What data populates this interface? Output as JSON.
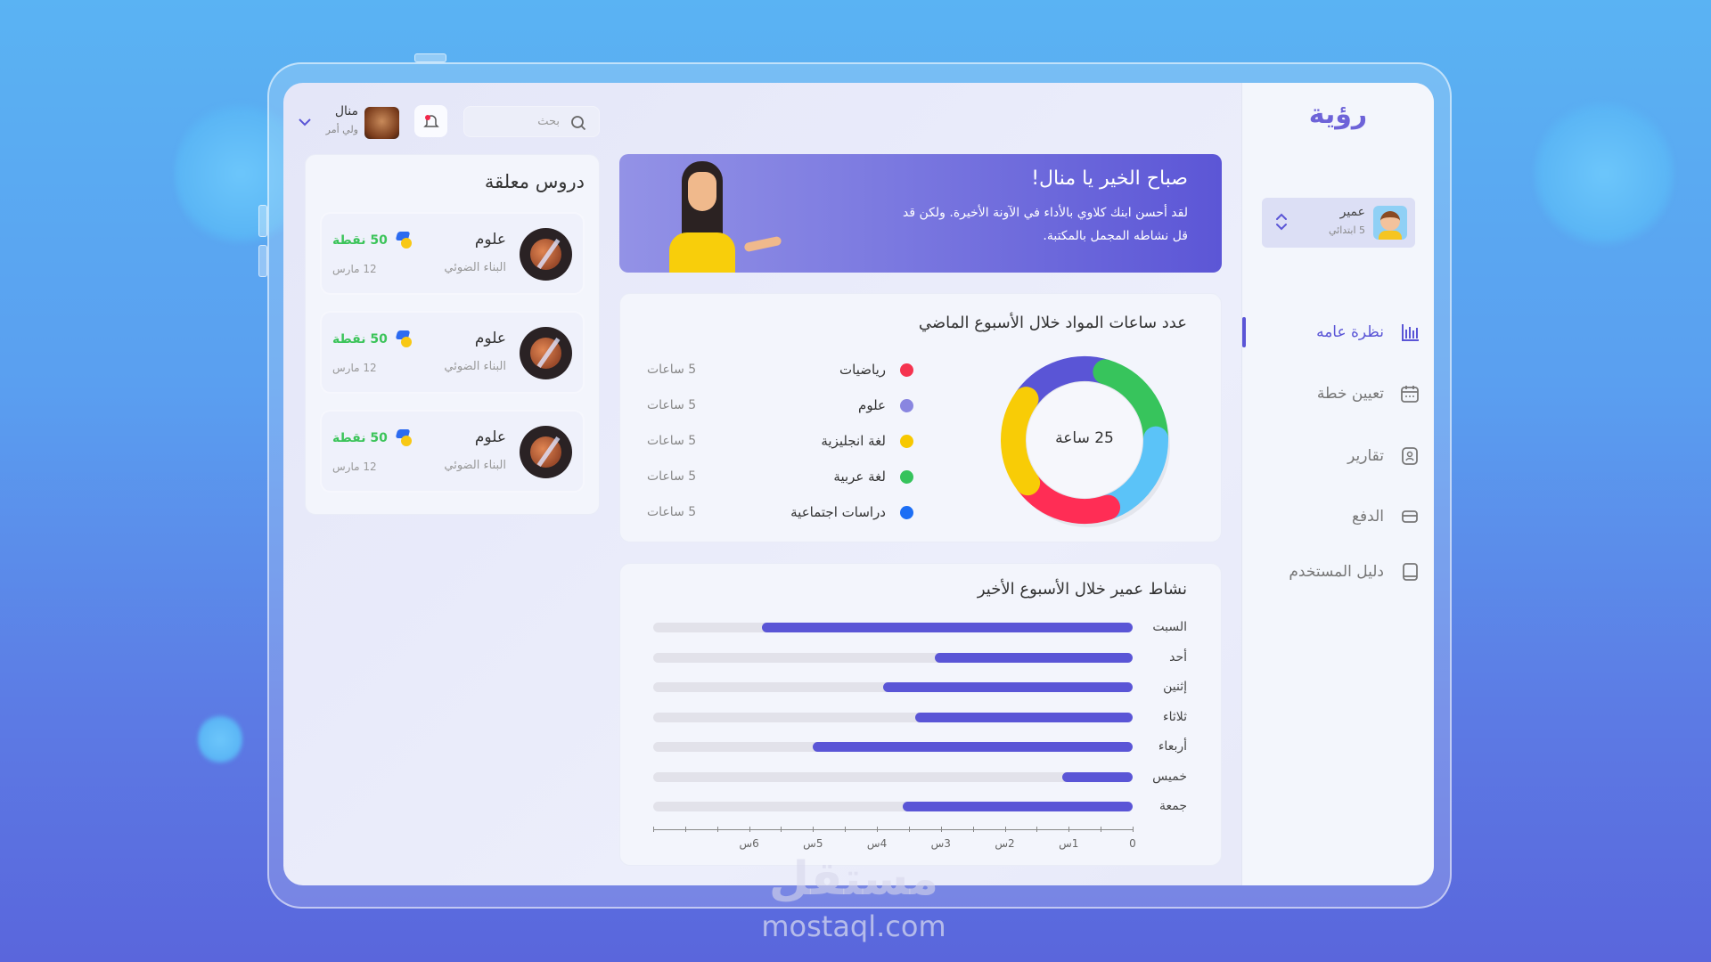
{
  "app": {
    "logo": "رؤية"
  },
  "header": {
    "search_placeholder": "بحث",
    "user_name": "منال",
    "user_role": "ولي أمر"
  },
  "student": {
    "name": "عمير",
    "grade": "5 ابتدائي"
  },
  "sidebar": {
    "items": [
      {
        "label": "نظرة عامه",
        "icon": "bar-chart-icon",
        "active": true
      },
      {
        "label": "تعيين خطة",
        "icon": "calendar-icon",
        "active": false
      },
      {
        "label": "تقارير",
        "icon": "report-icon",
        "active": false
      },
      {
        "label": "الدفع",
        "icon": "credit-card-icon",
        "active": false
      },
      {
        "label": "دليل المستخدم",
        "icon": "book-icon",
        "active": false
      }
    ]
  },
  "banner": {
    "title": "صباح الخير يا منال!",
    "line1": "لقد أحسن ابنك كلاوي بالأداء في الآونة الأخيرة. ولكن قد",
    "line2": "قل نشاطه المجمل بالمكتبة."
  },
  "pending": {
    "title": "دروس معلقة",
    "lessons": [
      {
        "subject": "علوم",
        "topic": "البناء الضوئي",
        "points": "50 نقطة",
        "date": "12 مارس"
      },
      {
        "subject": "علوم",
        "topic": "البناء الضوئي",
        "points": "50 نقطة",
        "date": "12 مارس"
      },
      {
        "subject": "علوم",
        "topic": "البناء الضوئي",
        "points": "50 نقطة",
        "date": "12 مارس"
      }
    ]
  },
  "colors": {
    "accent": "#5a55d6",
    "points": "#3cc45a"
  },
  "chart_data": [
    {
      "type": "pie",
      "title": "عدد ساعات المواد خلال الأسبوع الماضي",
      "center_label": "25 ساعة",
      "legend": [
        {
          "name": "رياضيات",
          "value": 5,
          "label": "5 ساعات",
          "dot": "#f5334f",
          "color": "#ff2d55"
        },
        {
          "name": "علوم",
          "value": 5,
          "label": "5 ساعات",
          "dot": "#8986e0",
          "color": "#5a55d6"
        },
        {
          "name": "لغة انجليزية",
          "value": 5,
          "label": "5 ساعات",
          "dot": "#f7c800",
          "color": "#f8cc06"
        },
        {
          "name": "لغة عربية",
          "value": 5,
          "label": "5 ساعات",
          "dot": "#36c35c",
          "color": "#37c45c"
        },
        {
          "name": "دراسات اجتماعية",
          "value": 5,
          "label": "5 ساعات",
          "dot": "#1c6ef5",
          "color": "#5bc3f8"
        }
      ],
      "ring_order": [
        "علوم",
        "لغة عربية",
        "دراسات اجتماعية",
        "رياضيات",
        "لغة انجليزية"
      ]
    },
    {
      "type": "bar",
      "title": "نشاط عمير خلال الأسبوع الأخير",
      "orientation": "horizontal",
      "categories": [
        "السبت",
        "أحد",
        "إثنين",
        "ثلاثاء",
        "أربعاء",
        "خميس",
        "جمعة"
      ],
      "values": [
        5.8,
        3.1,
        3.9,
        3.4,
        5.0,
        1.1,
        3.6
      ],
      "xlim": [
        0,
        7.5
      ],
      "ticks": [
        {
          "v": 0,
          "label": "0"
        },
        {
          "v": 1,
          "label": "1س"
        },
        {
          "v": 2,
          "label": "2س"
        },
        {
          "v": 3,
          "label": "3س"
        },
        {
          "v": 4,
          "label": "4س"
        },
        {
          "v": 5,
          "label": "5س"
        },
        {
          "v": 6,
          "label": "6س"
        }
      ],
      "bar_color": "#5a55d6",
      "track_color": "#e2e2ea"
    }
  ],
  "watermark": {
    "arabic": "مستقل",
    "latin": "mostaql.com"
  }
}
